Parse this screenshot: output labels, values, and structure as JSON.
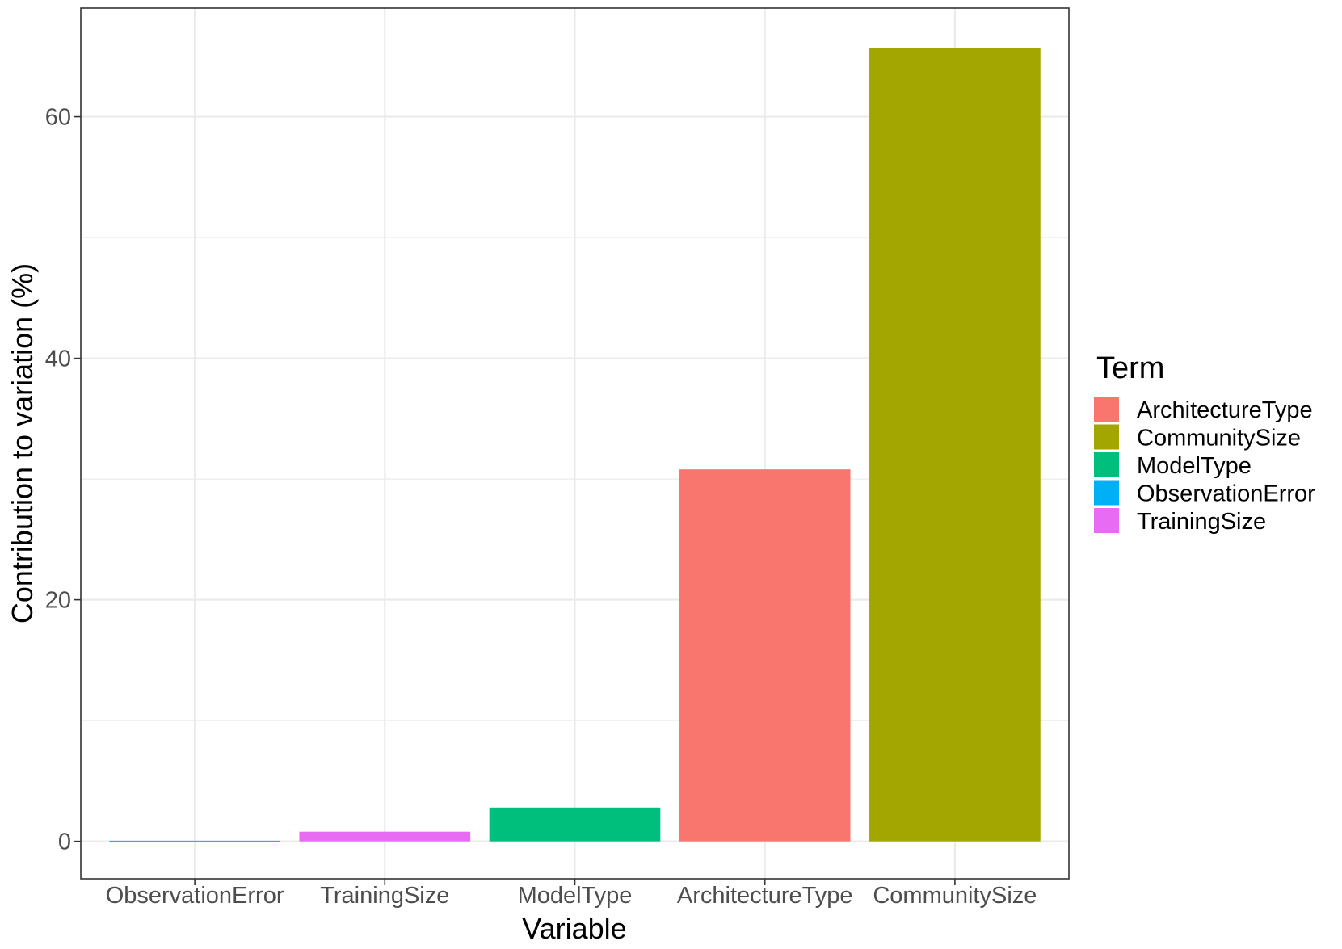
{
  "chart_data": {
    "type": "bar",
    "categories": [
      "ObservationError",
      "TrainingSize",
      "ModelType",
      "ArchitectureType",
      "CommunitySize"
    ],
    "values": [
      0.05,
      0.8,
      2.8,
      30.8,
      65.7
    ],
    "xlabel": "Variable",
    "ylabel": "Contribution to variation (%)",
    "ylim": [
      -3.1,
      69.0
    ],
    "yticks": [
      0,
      20,
      40,
      60
    ],
    "grid": true,
    "legend": {
      "title": "Term",
      "placement": "right",
      "entries": [
        "ArchitectureType",
        "CommunitySize",
        "ModelType",
        "ObservationError",
        "TrainingSize"
      ]
    },
    "colors": {
      "ArchitectureType": "#F8766D",
      "CommunitySize": "#A3A500",
      "ModelType": "#00BF7D",
      "ObservationError": "#00B0F6",
      "TrainingSize": "#E76BF3"
    }
  }
}
